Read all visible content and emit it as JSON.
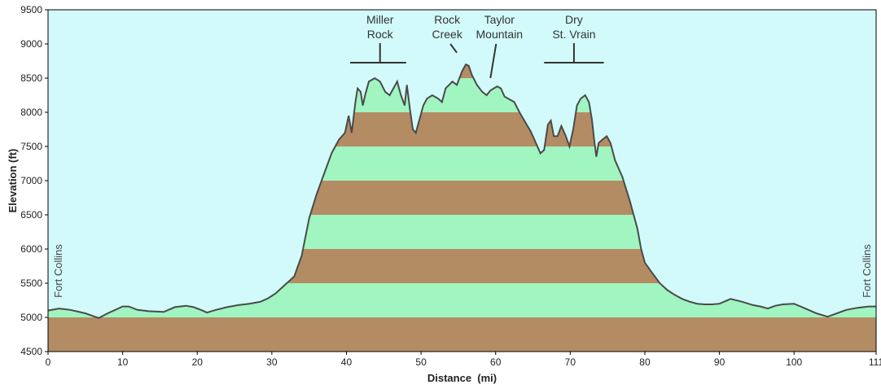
{
  "chart_data": {
    "type": "area",
    "xlabel": "Distance  (mi)",
    "ylabel": "Elevation (ft)",
    "xlim": [
      0,
      111
    ],
    "ylim": [
      4500,
      9500
    ],
    "xticks": [
      0,
      10,
      20,
      30,
      40,
      50,
      60,
      70,
      80,
      90,
      100,
      111
    ],
    "yticks": [
      4500,
      5000,
      5500,
      6000,
      6500,
      7000,
      7500,
      8000,
      8500,
      9000,
      9500
    ],
    "band_interval": 500,
    "band_colors": [
      "#b48c64",
      "#a0f5c0"
    ],
    "background_color": "#d2fafa",
    "outline_color": "#4a4a4a",
    "end_labels": [
      {
        "text": "Fort Collins",
        "x": 0
      },
      {
        "text": "Fort Collins",
        "x": 111
      }
    ],
    "annotations": [
      {
        "lines": [
          "Miller",
          "Rock"
        ],
        "marker": "bracket",
        "x_from": 40.5,
        "x_to": 48,
        "x_text": 44.5
      },
      {
        "lines": [
          "Rock",
          "Creek"
        ],
        "marker": "pointer",
        "x_text": 53.5,
        "x_target": 54.8,
        "y_target": 8800
      },
      {
        "lines": [
          "Taylor",
          "Mountain"
        ],
        "marker": "pointer",
        "x_text": 60.5,
        "x_target": 59.3,
        "y_target": 8430
      },
      {
        "lines": [
          "Dry",
          "St. Vrain"
        ],
        "marker": "bracket",
        "x_from": 66.5,
        "x_to": 74.5,
        "x_text": 70.5
      }
    ],
    "profile": [
      [
        0,
        5100
      ],
      [
        1.5,
        5130
      ],
      [
        3,
        5110
      ],
      [
        5,
        5060
      ],
      [
        6.8,
        4990
      ],
      [
        8,
        5060
      ],
      [
        10,
        5160
      ],
      [
        10.8,
        5160
      ],
      [
        12,
        5110
      ],
      [
        13.5,
        5090
      ],
      [
        15.5,
        5080
      ],
      [
        17,
        5150
      ],
      [
        18.5,
        5170
      ],
      [
        19.5,
        5150
      ],
      [
        20.5,
        5110
      ],
      [
        21.3,
        5070
      ],
      [
        22.5,
        5110
      ],
      [
        24,
        5150
      ],
      [
        25.5,
        5180
      ],
      [
        27,
        5200
      ],
      [
        28.5,
        5230
      ],
      [
        29.5,
        5280
      ],
      [
        30.5,
        5350
      ],
      [
        31.5,
        5450
      ],
      [
        33,
        5600
      ],
      [
        34,
        5900
      ],
      [
        35,
        6450
      ],
      [
        36,
        6800
      ],
      [
        37,
        7100
      ],
      [
        38,
        7400
      ],
      [
        39,
        7600
      ],
      [
        39.8,
        7700
      ],
      [
        40.3,
        7950
      ],
      [
        40.7,
        7700
      ],
      [
        41.2,
        8150
      ],
      [
        41.5,
        8350
      ],
      [
        41.9,
        8300
      ],
      [
        42.2,
        8100
      ],
      [
        42.5,
        8250
      ],
      [
        43,
        8450
      ],
      [
        43.8,
        8500
      ],
      [
        44.5,
        8450
      ],
      [
        45.2,
        8300
      ],
      [
        45.8,
        8250
      ],
      [
        46.3,
        8350
      ],
      [
        46.8,
        8450
      ],
      [
        47.3,
        8250
      ],
      [
        47.8,
        8100
      ],
      [
        48.1,
        8400
      ],
      [
        48.5,
        8050
      ],
      [
        48.9,
        7750
      ],
      [
        49.3,
        7700
      ],
      [
        49.8,
        7900
      ],
      [
        50.3,
        8100
      ],
      [
        50.8,
        8200
      ],
      [
        51.5,
        8250
      ],
      [
        52.3,
        8200
      ],
      [
        52.8,
        8150
      ],
      [
        53.3,
        8350
      ],
      [
        54.2,
        8450
      ],
      [
        54.8,
        8400
      ],
      [
        55.5,
        8600
      ],
      [
        56,
        8700
      ],
      [
        56.4,
        8680
      ],
      [
        56.8,
        8550
      ],
      [
        57.5,
        8400
      ],
      [
        58.2,
        8300
      ],
      [
        58.8,
        8250
      ],
      [
        59.3,
        8320
      ],
      [
        60.2,
        8380
      ],
      [
        60.7,
        8350
      ],
      [
        61.2,
        8230
      ],
      [
        62,
        8180
      ],
      [
        62.5,
        8150
      ],
      [
        63.2,
        8000
      ],
      [
        64,
        7850
      ],
      [
        64.7,
        7720
      ],
      [
        65.4,
        7550
      ],
      [
        66,
        7400
      ],
      [
        66.5,
        7450
      ],
      [
        67,
        7820
      ],
      [
        67.4,
        7880
      ],
      [
        67.8,
        7650
      ],
      [
        68.3,
        7650
      ],
      [
        68.8,
        7800
      ],
      [
        69.4,
        7650
      ],
      [
        69.9,
        7500
      ],
      [
        70.4,
        7750
      ],
      [
        70.9,
        8100
      ],
      [
        71.4,
        8200
      ],
      [
        72,
        8250
      ],
      [
        72.5,
        8150
      ],
      [
        72.9,
        7900
      ],
      [
        73.2,
        7600
      ],
      [
        73.5,
        7350
      ],
      [
        73.8,
        7550
      ],
      [
        74.3,
        7600
      ],
      [
        74.9,
        7650
      ],
      [
        75.4,
        7550
      ],
      [
        76,
        7300
      ],
      [
        77,
        7050
      ],
      [
        78,
        6700
      ],
      [
        79,
        6300
      ],
      [
        79.5,
        6000
      ],
      [
        80,
        5800
      ],
      [
        81,
        5650
      ],
      [
        82,
        5500
      ],
      [
        83,
        5400
      ],
      [
        84,
        5330
      ],
      [
        85,
        5270
      ],
      [
        86,
        5230
      ],
      [
        87,
        5200
      ],
      [
        88,
        5190
      ],
      [
        89,
        5190
      ],
      [
        90,
        5200
      ],
      [
        91.5,
        5270
      ],
      [
        93,
        5230
      ],
      [
        94.5,
        5180
      ],
      [
        95.5,
        5160
      ],
      [
        96.5,
        5130
      ],
      [
        97.5,
        5170
      ],
      [
        98.5,
        5190
      ],
      [
        100,
        5200
      ],
      [
        101.5,
        5130
      ],
      [
        103,
        5060
      ],
      [
        104.5,
        5010
      ],
      [
        105.5,
        5050
      ],
      [
        107,
        5110
      ],
      [
        108.5,
        5140
      ],
      [
        110,
        5160
      ],
      [
        111,
        5160
      ]
    ]
  }
}
